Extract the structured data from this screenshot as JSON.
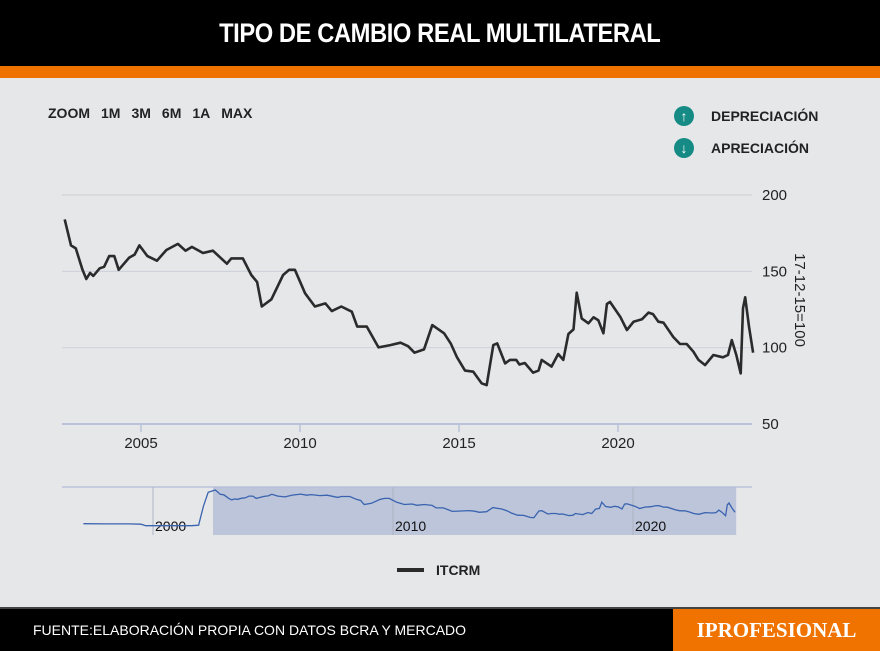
{
  "header": {
    "title": "TIPO DE CAMBIO REAL MULTILATERAL"
  },
  "zoom": {
    "label": "ZOOM",
    "options": [
      "1M",
      "3M",
      "6M",
      "1A",
      "MAX"
    ]
  },
  "legend_top": [
    {
      "label": "DEPRECIACIÓN",
      "icon": "arrow-up-circle-icon"
    },
    {
      "label": "APRECIACIÓN",
      "icon": "arrow-down-circle-icon"
    }
  ],
  "colors": {
    "accent": "#f07300",
    "teal": "#168b85",
    "line": "#2b2b2b",
    "navigator_line": "#3a63b0",
    "navigator_selection": "#b4bed6"
  },
  "footer": {
    "source": "FUENTE:ELABORACIÓN PROPIA CON DATOS BCRA  Y MERCADO",
    "brand": "IPROFESIONAL"
  },
  "chart_data": {
    "type": "line",
    "ylabel": "17-12-15=100",
    "ylim": [
      50,
      200
    ],
    "yticks": [
      "50",
      "100",
      "150",
      "200"
    ],
    "xlim": [
      2002.6,
      2024.3
    ],
    "xticks": [
      "2005",
      "2010",
      "2015",
      "2020"
    ],
    "grid": true,
    "legend": "bottom",
    "series": [
      {
        "name": "ITCRM",
        "x": [
          2002.6,
          2002.8,
          2002.95,
          2003.16,
          2003.28,
          2003.4,
          2003.5,
          2003.7,
          2003.84,
          2004.0,
          2004.16,
          2004.3,
          2004.63,
          2004.8,
          2004.95,
          2005.2,
          2005.5,
          2005.8,
          2006.16,
          2006.4,
          2006.6,
          2006.95,
          2007.26,
          2007.7,
          2007.84,
          2008.2,
          2008.47,
          2008.65,
          2008.8,
          2009.1,
          2009.47,
          2009.66,
          2009.84,
          2010.16,
          2010.47,
          2010.8,
          2011.0,
          2011.3,
          2011.63,
          2011.8,
          2012.1,
          2012.47,
          2012.84,
          2013.16,
          2013.4,
          2013.6,
          2013.9,
          2014.16,
          2014.53,
          2014.74,
          2014.93,
          2015.19,
          2015.45,
          2015.71,
          2015.87,
          2016.08,
          2016.2,
          2016.45,
          2016.6,
          2016.8,
          2016.9,
          2017.07,
          2017.33,
          2017.5,
          2017.6,
          2017.91,
          2018.12,
          2018.28,
          2018.44,
          2018.6,
          2018.7,
          2018.86,
          2019.07,
          2019.23,
          2019.38,
          2019.54,
          2019.65,
          2019.75,
          2020.07,
          2020.28,
          2020.49,
          2020.75,
          2020.96,
          2021.1,
          2021.27,
          2021.43,
          2021.74,
          2021.95,
          2022.16,
          2022.37,
          2022.53,
          2022.74,
          2023.0,
          2023.3,
          2023.46,
          2023.58,
          2023.72,
          2023.86,
          2023.93,
          2024.0,
          2024.12,
          2024.25
        ],
        "y": [
          184,
          167,
          165,
          151,
          145,
          149,
          147,
          152,
          153,
          160,
          160,
          151,
          159,
          161,
          167,
          160,
          157,
          164,
          168,
          163.5,
          166,
          162,
          163.5,
          155,
          158.5,
          158.5,
          147.6,
          143,
          127,
          131.7,
          147.6,
          151,
          151,
          135.6,
          127,
          129,
          124,
          127,
          123.6,
          113.8,
          113.8,
          100.2,
          101.7,
          103.3,
          101,
          96.7,
          98.9,
          114.8,
          109.4,
          102.8,
          94,
          85,
          84.3,
          76.7,
          75.5,
          101.7,
          102.8,
          89.7,
          92,
          92,
          89,
          90,
          83.6,
          85,
          92,
          87.6,
          95.9,
          92,
          109,
          112,
          136,
          119.2,
          116,
          119.9,
          118,
          109.4,
          128.6,
          130,
          120.3,
          111.6,
          117,
          118.6,
          123,
          122,
          117,
          116.4,
          107,
          102.4,
          102.4,
          97.4,
          92,
          88.6,
          95.2,
          93.7,
          95.2,
          105,
          95.2,
          83.2,
          125.8,
          133,
          113.8,
          96.7
        ]
      }
    ],
    "navigator": {
      "xticks": [
        "2000",
        "2010",
        "2020"
      ],
      "selection": [
        2002.5,
        2024.3
      ],
      "pre_x": [
        1997.1,
        1998.0,
        1999.0,
        1999.5,
        1999.7,
        2000.0,
        2001.0,
        2001.6,
        2001.9,
        2002.1,
        2002.3
      ],
      "pre_y": [
        52,
        51,
        51,
        50,
        44,
        44,
        44,
        44,
        46,
        120,
        175
      ]
    }
  }
}
